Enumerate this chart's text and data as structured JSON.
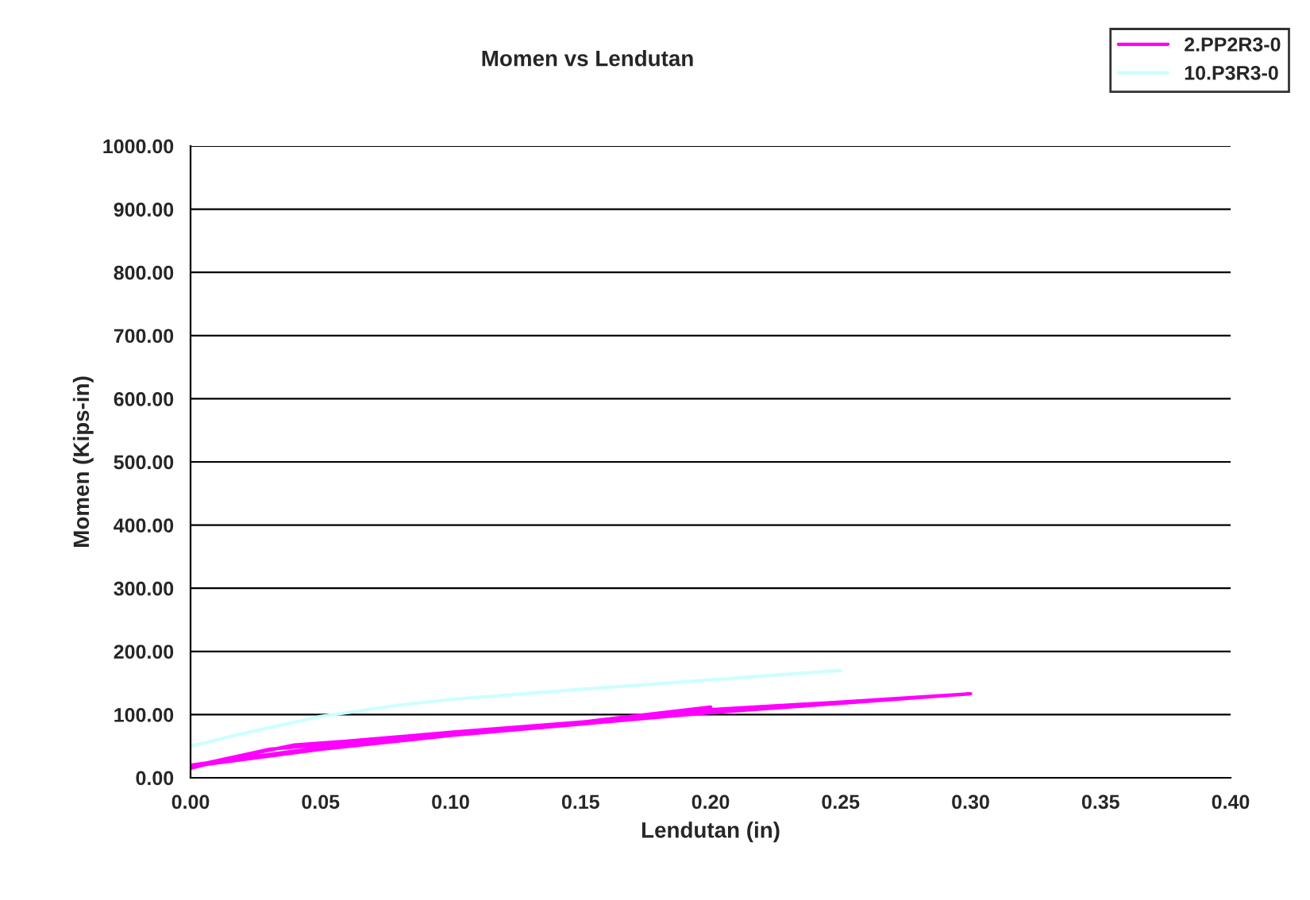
{
  "chart_data": {
    "type": "line",
    "title": "Momen vs Lendutan",
    "xlabel": "Lendutan (in)",
    "ylabel": "Momen (Kips-in)",
    "xlim": [
      0,
      0.4
    ],
    "xticks": [
      {
        "value": 0,
        "label": "0.00"
      },
      {
        "value": 0.05,
        "label": "0.05"
      },
      {
        "value": 0.1,
        "label": "0.10"
      },
      {
        "value": 0.15,
        "label": "0.15"
      },
      {
        "value": 0.2,
        "label": "0.20"
      },
      {
        "value": 0.25,
        "label": "0.25"
      },
      {
        "value": 0.3,
        "label": "0.30"
      },
      {
        "value": 0.35,
        "label": "0.35"
      },
      {
        "value": 0.4,
        "label": "0.40"
      }
    ],
    "ylim": [
      0,
      1000
    ],
    "yticks": [
      {
        "value": 0,
        "label": "0.00"
      },
      {
        "value": 100,
        "label": "100.00"
      },
      {
        "value": 200,
        "label": "200.00"
      },
      {
        "value": 300,
        "label": "300.00"
      },
      {
        "value": 400,
        "label": "400.00"
      },
      {
        "value": 500,
        "label": "500.00"
      },
      {
        "value": 600,
        "label": "600.00"
      },
      {
        "value": 700,
        "label": "700.00"
      },
      {
        "value": 800,
        "label": "800.00"
      },
      {
        "value": 900,
        "label": "900.00"
      },
      {
        "value": 1000,
        "label": "1000.00"
      }
    ],
    "grid": "y",
    "legend": "top right",
    "marker": "none",
    "line_style": "solid",
    "series": [
      {
        "name": "2.PP2R3-0",
        "color": "#ff00ff",
        "x": [
          0,
          0.02,
          0.04,
          0.06,
          0.1,
          0.15,
          0.2,
          0.25,
          0.3,
          0.25,
          0.2,
          0.15,
          0.1,
          0.05,
          0,
          0.03,
          0.1,
          0.15,
          0.2,
          0.15,
          0.1,
          0.05,
          0
        ],
        "values": [
          15,
          35,
          52,
          58,
          72,
          88,
          108,
          120,
          133,
          118,
          103,
          85,
          67,
          45,
          18,
          45,
          70,
          88,
          112,
          86,
          68,
          48,
          20
        ]
      },
      {
        "name": "10.P3R3-0",
        "color": "#ccffff",
        "x": [
          0,
          0.02,
          0.05,
          0.08,
          0.1,
          0.15,
          0.2,
          0.25
        ],
        "values": [
          50,
          70,
          97,
          115,
          124,
          140,
          155,
          170
        ]
      }
    ]
  }
}
